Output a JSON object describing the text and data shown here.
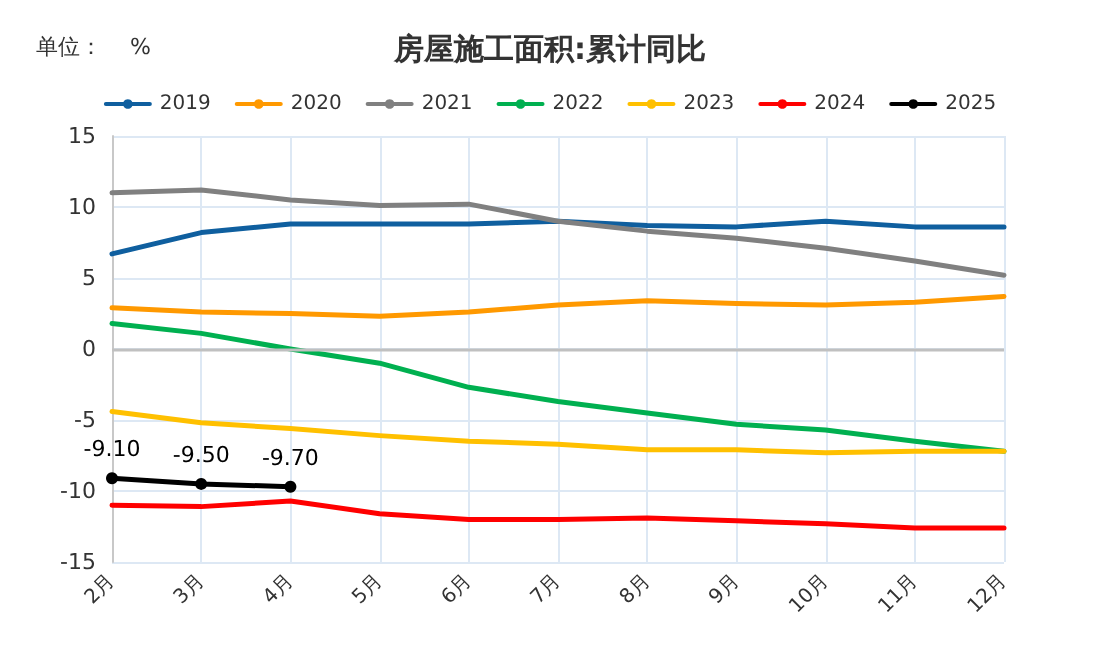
{
  "chart_data": {
    "type": "line",
    "title": "房屋施工面积:累计同比",
    "annotations": [
      "单位：    %"
    ],
    "categories": [
      "2月",
      "3月",
      "4月",
      "5月",
      "6月",
      "7月",
      "8月",
      "9月",
      "10月",
      "11月",
      "12月"
    ],
    "ylim": [
      -15,
      15
    ],
    "yticks": [
      -15,
      -10,
      -5,
      0,
      5,
      10,
      15
    ],
    "grid": true,
    "legend": "top",
    "line_style": "solid",
    "series": [
      {
        "name": "2019",
        "color": "#0f5f9f",
        "values": [
          6.7,
          8.2,
          8.8,
          8.8,
          8.8,
          9.0,
          8.7,
          8.6,
          9.0,
          8.6,
          8.6
        ]
      },
      {
        "name": "2020",
        "color": "#ff9900",
        "values": [
          2.9,
          2.6,
          2.5,
          2.3,
          2.6,
          3.1,
          3.4,
          3.2,
          3.1,
          3.3,
          3.7
        ]
      },
      {
        "name": "2021",
        "color": "#808080",
        "values": [
          11.0,
          11.2,
          10.5,
          10.1,
          10.2,
          9.0,
          8.3,
          7.8,
          7.1,
          6.2,
          5.2
        ]
      },
      {
        "name": "2022",
        "color": "#00b050",
        "values": [
          1.8,
          1.1,
          0.0,
          -1.0,
          -2.7,
          -3.7,
          -4.5,
          -5.3,
          -5.7,
          -6.5,
          -7.2
        ]
      },
      {
        "name": "2023",
        "color": "#ffc000",
        "values": [
          -4.4,
          -5.2,
          -5.6,
          -6.1,
          -6.5,
          -6.7,
          -7.1,
          -7.1,
          -7.3,
          -7.2,
          -7.2
        ]
      },
      {
        "name": "2024",
        "color": "#ff0000",
        "values": [
          -11.0,
          -11.1,
          -10.7,
          -11.6,
          -12.0,
          -12.0,
          -11.9,
          -12.1,
          -12.3,
          -12.6,
          -12.6
        ]
      },
      {
        "name": "2025",
        "color": "#000000",
        "marker": "circle",
        "values": [
          -9.1,
          -9.5,
          -9.7,
          null,
          null,
          null,
          null,
          null,
          null,
          null,
          null
        ],
        "value_labels": [
          "-9.10",
          "-9.50",
          "-9.70",
          null,
          null,
          null,
          null,
          null,
          null,
          null,
          null
        ]
      }
    ]
  }
}
